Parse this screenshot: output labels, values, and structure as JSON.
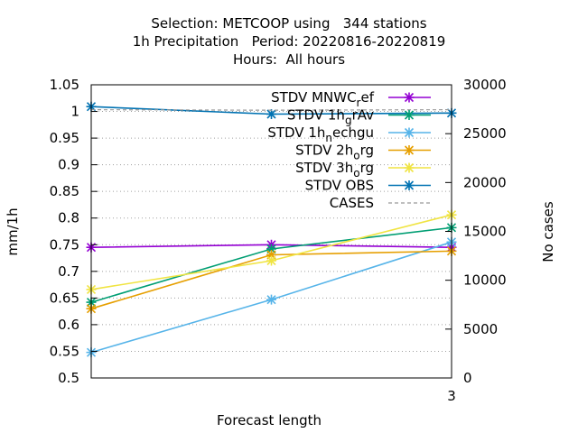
{
  "chart_data": {
    "type": "line",
    "title": [
      "Selection: METCOOP using   344 stations",
      "1h Precipitation   Period: 20220816-20220819",
      "Hours:  All hours"
    ],
    "xlabel": "Forecast length",
    "ylabel": "mm/1h",
    "y2label": "No cases",
    "x": [
      1,
      2,
      3
    ],
    "xlim": [
      1,
      3
    ],
    "ylim": [
      0.5,
      1.05
    ],
    "y2lim": [
      0,
      30000
    ],
    "x_ticks": [
      3
    ],
    "y_ticks": [
      0.5,
      0.55,
      0.6,
      0.65,
      0.7,
      0.75,
      0.8,
      0.85,
      0.9,
      0.95,
      1,
      1.05
    ],
    "y_tick_labels": [
      "0.5",
      "0.55",
      "0.6",
      "0.65",
      "0.7",
      "0.75",
      "0.8",
      "0.85",
      "0.9",
      "0.95",
      "1",
      "1.05"
    ],
    "y2_ticks": [
      0,
      5000,
      10000,
      15000,
      20000,
      25000,
      30000
    ],
    "grid": "horizontal dotted",
    "legend_position": "top-right",
    "series": [
      {
        "name": "STDV MNWC_ref",
        "label_main": "STDV MNWC",
        "label_sub": "r",
        "label_tail": "ef",
        "color": "#9400d3",
        "axis": "y1",
        "dash": "",
        "values": [
          0.745,
          0.75,
          0.745
        ]
      },
      {
        "name": "STDV 1h_grAv",
        "label_main": "STDV 1h",
        "label_sub": "g",
        "label_tail": "rAv",
        "color": "#009e73",
        "axis": "y1",
        "dash": "",
        "values": [
          0.642,
          0.742,
          0.782
        ]
      },
      {
        "name": "STDV 1h_nechgu",
        "label_main": "STDV 1h",
        "label_sub": "n",
        "label_tail": "echgu",
        "color": "#56b4e9",
        "axis": "y1",
        "dash": "",
        "values": [
          0.548,
          0.647,
          0.755
        ]
      },
      {
        "name": "STDV 2h_org",
        "label_main": "STDV 2h",
        "label_sub": "o",
        "label_tail": "rg",
        "color": "#e69f00",
        "axis": "y1",
        "dash": "",
        "values": [
          0.63,
          0.731,
          0.738
        ]
      },
      {
        "name": "STDV 3h_org",
        "label_main": "STDV 3h",
        "label_sub": "o",
        "label_tail": "rg",
        "color": "#f0e442",
        "axis": "y1",
        "dash": "",
        "values": [
          0.666,
          0.72,
          0.806
        ]
      },
      {
        "name": "STDV OBS",
        "label_main": "STDV OBS",
        "label_sub": "",
        "label_tail": "",
        "color": "#0072b2",
        "axis": "y1",
        "dash": "",
        "values": [
          1.009,
          0.995,
          0.997
        ]
      },
      {
        "name": "CASES",
        "label_main": "CASES",
        "label_sub": "",
        "label_tail": "",
        "color": "#999999",
        "axis": "y2",
        "dash": "4,3",
        "values": [
          27450,
          27400,
          27450
        ]
      }
    ]
  }
}
